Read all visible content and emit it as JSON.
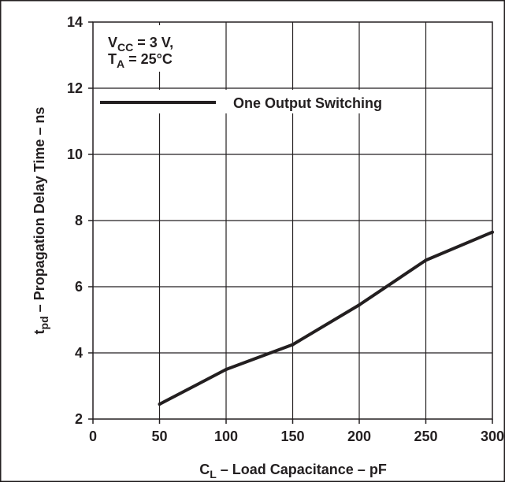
{
  "chart_data": {
    "type": "line",
    "title": "",
    "xlabel": {
      "main": "C",
      "sub": "L",
      "rest": " – Load Capacitance – pF"
    },
    "ylabel": {
      "main": "t",
      "sub": "pd",
      "rest": " – Propagation Delay Time – ns"
    },
    "xlim": [
      0,
      300
    ],
    "ylim": [
      2,
      14
    ],
    "x_ticks": [
      0,
      50,
      100,
      150,
      200,
      250,
      300
    ],
    "y_ticks": [
      2,
      4,
      6,
      8,
      10,
      12,
      14
    ],
    "grid": true,
    "conditions": [
      {
        "main": "V",
        "sub": "CC",
        "rest": " = 3 V,"
      },
      {
        "main": "T",
        "sub": "A",
        "rest": " = 25°C"
      }
    ],
    "legend": {
      "placement": "top-left",
      "entries": [
        "One Output Switching"
      ]
    },
    "series": [
      {
        "name": "One Output Switching",
        "color": "#231f20",
        "x": [
          50,
          100,
          150,
          200,
          250,
          300
        ],
        "y": [
          2.45,
          3.5,
          4.25,
          5.45,
          6.8,
          7.65
        ]
      }
    ]
  }
}
